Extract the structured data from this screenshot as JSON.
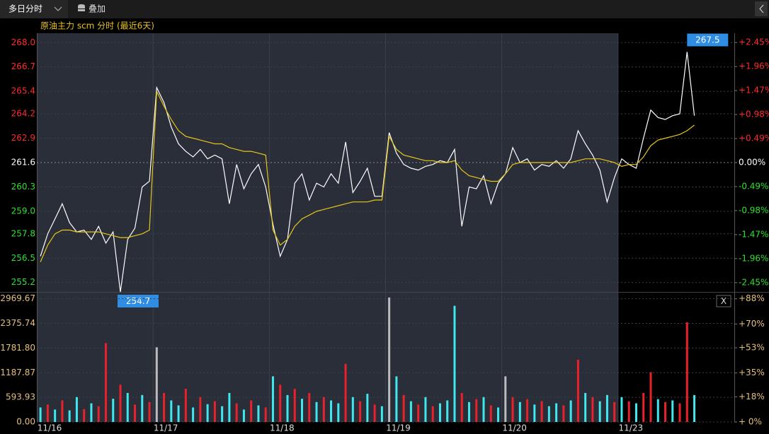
{
  "toolbar": {
    "mode": "多日分时",
    "overlay": "叠加"
  },
  "chart_data": [
    {
      "type": "line",
      "title": "原油主力 scm 分时 (最近6天)",
      "ylim": [
        254.7,
        268.5
      ],
      "yticks": [
        {
          "value": 255.2,
          "label": "255.2"
        },
        256.5,
        257.8,
        {
          "value": 259,
          "label": "259.0"
        },
        260.3,
        261.6,
        262.9,
        264.2,
        265.4,
        266.7,
        {
          "value": 268,
          "label": "268.0"
        }
      ],
      "y2lim": [
        -2.64,
        2.64
      ],
      "y2ticks": [
        {
          "value": -2.45,
          "label": "-2.45%"
        },
        {
          "value": -1.96,
          "label": "-1.96%"
        },
        {
          "value": -1.47,
          "label": "-1.47%"
        },
        {
          "value": -0.98,
          "label": "-0.98%"
        },
        {
          "value": -0.49,
          "label": "-0.49%"
        },
        {
          "value": 0,
          "label": "0.00%"
        },
        {
          "value": 0.49,
          "label": "+0.49%"
        },
        {
          "value": 0.98,
          "label": "+0.98%"
        },
        {
          "value": 1.47,
          "label": "+1.47%"
        },
        {
          "value": 1.96,
          "label": "+1.96%"
        },
        {
          "value": 2.45,
          "label": "+2.45%"
        }
      ],
      "high": 267.5,
      "low": 254.7,
      "series": [
        {
          "color": "#ffffff",
          "values": [
            256.6,
            257.8,
            258.6,
            259.4,
            258.4,
            257.9,
            258.0,
            257.5,
            258.2,
            257.3,
            257.9,
            254.7,
            257.5,
            258.1,
            260.3,
            260.6,
            265.6,
            264.8,
            263.5,
            262.6,
            262.2,
            261.9,
            262.3,
            261.8,
            262.0,
            261.8,
            259.4,
            261.5,
            260.2,
            261.0,
            261.5,
            260.3,
            258.3,
            256.6,
            257.5,
            260.5,
            261.0,
            259.6,
            260.5,
            260.3,
            261.0,
            260.5,
            262.7,
            260.0,
            260.6,
            261.3,
            259.8,
            259.8,
            263.2,
            262.1,
            261.5,
            261.3,
            261.2,
            261.4,
            261.5,
            261.7,
            261.6,
            262.3,
            258.2,
            260.3,
            260.2,
            260.9,
            259.4,
            260.5,
            261.0,
            262.4,
            261.6,
            261.8,
            261.2,
            261.5,
            261.4,
            261.7,
            261.3,
            261.8,
            263.3,
            262.6,
            262.0,
            261.2,
            259.5,
            260.8,
            261.8,
            261.5,
            261.3,
            262.9,
            264.4,
            264.0,
            263.9,
            264.1,
            264.2,
            267.5,
            264.1,
            null,
            null,
            null,
            null,
            null
          ]
        },
        {
          "color": "#e6c619",
          "values": [
            256.3,
            257.2,
            257.8,
            258.0,
            258.0,
            257.9,
            257.9,
            257.9,
            257.9,
            257.8,
            257.7,
            257.6,
            257.6,
            257.7,
            257.8,
            258.0,
            265.4,
            264.6,
            263.9,
            263.3,
            263.0,
            262.9,
            262.8,
            262.7,
            262.6,
            262.6,
            262.4,
            262.3,
            262.2,
            262.2,
            262.1,
            262.0,
            258.0,
            257.2,
            257.5,
            258.2,
            258.6,
            258.8,
            259.0,
            259.1,
            259.2,
            259.3,
            259.4,
            259.5,
            259.5,
            259.5,
            259.6,
            259.6,
            263.0,
            262.3,
            262.0,
            261.9,
            261.8,
            261.7,
            261.7,
            261.6,
            261.6,
            261.7,
            261.2,
            260.9,
            260.8,
            260.7,
            260.6,
            260.6,
            261.0,
            261.5,
            261.6,
            261.6,
            261.6,
            261.6,
            261.6,
            261.6,
            261.6,
            261.6,
            261.7,
            261.8,
            261.8,
            261.8,
            261.7,
            261.6,
            261.4,
            261.5,
            261.5,
            261.9,
            262.5,
            262.8,
            262.9,
            263.0,
            263.1,
            263.3,
            263.6,
            null,
            null,
            null,
            null,
            null
          ]
        }
      ]
    },
    {
      "type": "bar",
      "categories": [
        "11/16",
        null,
        null,
        null,
        null,
        null,
        null,
        null,
        null,
        null,
        null,
        null,
        null,
        null,
        null,
        null,
        "11/17",
        null,
        null,
        null,
        null,
        null,
        null,
        null,
        null,
        null,
        null,
        null,
        null,
        null,
        null,
        null,
        "11/18",
        null,
        null,
        null,
        null,
        null,
        null,
        null,
        null,
        null,
        null,
        null,
        null,
        null,
        null,
        null,
        "11/19",
        null,
        null,
        null,
        null,
        null,
        null,
        null,
        null,
        null,
        null,
        null,
        null,
        null,
        null,
        null,
        "11/20",
        null,
        null,
        null,
        null,
        null,
        null,
        null,
        null,
        null,
        null,
        null,
        null,
        null,
        null,
        null,
        "11/23",
        null,
        null,
        null,
        null,
        null,
        null,
        null,
        null,
        null,
        null,
        null,
        null,
        null,
        null,
        null
      ],
      "ylim": [
        0,
        3100
      ],
      "yticks": [
        {
          "value": 0,
          "label": "0.00"
        },
        593.93,
        1187.87,
        {
          "value": 1781.8,
          "label": "1781.80"
        },
        2375.74,
        2969.67
      ],
      "y2lim": [
        0,
        91.9
      ],
      "y2ticks": [
        {
          "value": 0,
          "label": "+ 0%"
        },
        {
          "value": 18,
          "label": "+18%"
        },
        {
          "value": 35,
          "label": "+35%"
        },
        {
          "value": 53,
          "label": "+53%"
        },
        {
          "value": 70,
          "label": "+70%"
        },
        {
          "value": 88,
          "label": "+88%"
        }
      ],
      "values": [
        350,
        420,
        300,
        520,
        280,
        600,
        310,
        450,
        380,
        1900,
        560,
        900,
        700,
        420,
        650,
        480,
        1800,
        700,
        520,
        400,
        800,
        350,
        600,
        430,
        500,
        380,
        700,
        450,
        300,
        520,
        400,
        350,
        1100,
        900,
        650,
        800,
        560,
        700,
        480,
        600,
        520,
        450,
        1400,
        600,
        500,
        680,
        420,
        380,
        3000,
        1100,
        650,
        500,
        420,
        600,
        380,
        450,
        520,
        2800,
        700,
        480,
        550,
        600,
        400,
        350,
        1100,
        600,
        480,
        550,
        420,
        500,
        380,
        450,
        400,
        520,
        1500,
        700,
        600,
        500,
        650,
        480,
        600,
        500,
        450,
        700,
        1200,
        550,
        480,
        520,
        450,
        2400,
        650,
        null,
        null,
        null,
        null,
        null
      ],
      "colors": [
        "#3ee8ee",
        "#e8212b",
        "#3ee8ee",
        "#e8212b",
        "#3ee8ee",
        "#3ee8ee",
        "#e8212b",
        "#3ee8ee",
        "#e8212b",
        "#e8212b",
        "#3ee8ee",
        "#e8212b",
        "#3ee8ee",
        "#e8212b",
        "#3ee8ee",
        "#e8212b",
        "#bbbbbb",
        "#e8212b",
        "#3ee8ee",
        "#3ee8ee",
        "#e8212b",
        "#3ee8ee",
        "#e8212b",
        "#3ee8ee",
        "#e8212b",
        "#3ee8ee",
        "#3ee8ee",
        "#e8212b",
        "#3ee8ee",
        "#e8212b",
        "#3ee8ee",
        "#e8212b",
        "#3ee8ee",
        "#e8212b",
        "#3ee8ee",
        "#e8212b",
        "#3ee8ee",
        "#e8212b",
        "#3ee8ee",
        "#e8212b",
        "#3ee8ee",
        "#3ee8ee",
        "#e8212b",
        "#3ee8ee",
        "#e8212b",
        "#3ee8ee",
        "#e8212b",
        "#3ee8ee",
        "#bbbbbb",
        "#3ee8ee",
        "#e8212b",
        "#3ee8ee",
        "#e8212b",
        "#3ee8ee",
        "#e8212b",
        "#3ee8ee",
        "#3ee8ee",
        "#3ee8ee",
        "#e8212b",
        "#3ee8ee",
        "#e8212b",
        "#3ee8ee",
        "#e8212b",
        "#3ee8ee",
        "#bbbbbb",
        "#e8212b",
        "#3ee8ee",
        "#e8212b",
        "#3ee8ee",
        "#e8212b",
        "#3ee8ee",
        "#3ee8ee",
        "#e8212b",
        "#3ee8ee",
        "#e8212b",
        "#3ee8ee",
        "#e8212b",
        "#3ee8ee",
        "#3ee8ee",
        "#e8212b",
        "#3ee8ee",
        "#e8212b",
        "#3ee8ee",
        "#e8212b",
        "#e8212b",
        "#3ee8ee",
        "#e8212b",
        "#3ee8ee",
        "#e8212b",
        "#e8212b",
        "#3ee8ee",
        null,
        null,
        null,
        null,
        null
      ]
    }
  ]
}
